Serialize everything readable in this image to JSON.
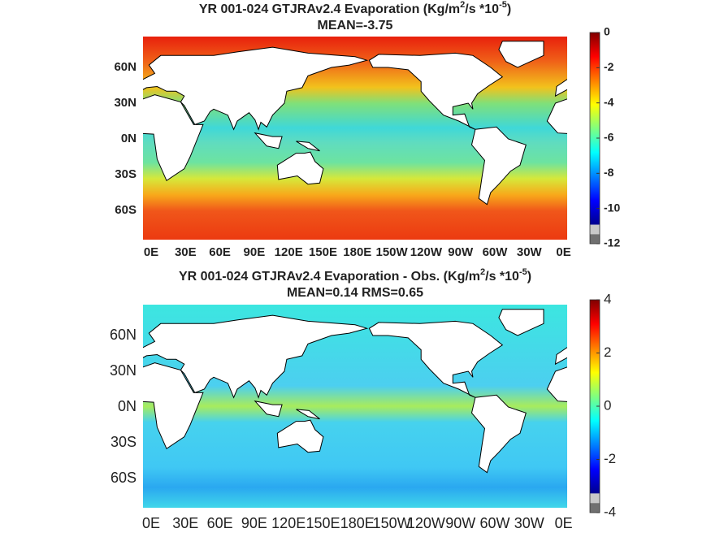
{
  "panels": [
    {
      "title": [
        "YR 001-024 GTJRAv2.4  Evaporation (Kg/m",
        "2",
        "/s *10",
        "-5",
        ")"
      ],
      "subtitle": "MEAN=-3.75",
      "lat_labels": [
        "60N",
        "30N",
        "0N",
        "30S",
        "60S"
      ],
      "lon_labels": [
        "0E",
        "30E",
        "60E",
        "90E",
        "120E",
        "150E",
        "180E",
        "150W",
        "120W",
        "90W",
        "60W",
        "30W",
        "0E"
      ],
      "colorbar": {
        "lim": [
          -12,
          0
        ],
        "ticks": [
          0,
          -2,
          -4,
          -6,
          -8,
          -10,
          -12
        ]
      }
    },
    {
      "title": [
        "YR 001-024 GTJRAv2.4 Evaporation - Obs. (Kg/m",
        "2",
        "/s *10",
        "-5",
        ")"
      ],
      "subtitle": "MEAN=0.14   RMS=0.65",
      "lat_labels": [
        "60N",
        "30N",
        "0N",
        "30S",
        "60S"
      ],
      "lon_labels": [
        "0E",
        "30E",
        "60E",
        "90E",
        "120E",
        "150E",
        "180E",
        "150W",
        "120W",
        "90W",
        "60W",
        "30W",
        "0E"
      ],
      "colorbar": {
        "lim": [
          -4,
          4
        ],
        "ticks": [
          4,
          2,
          0,
          -2,
          -4
        ]
      }
    }
  ]
}
